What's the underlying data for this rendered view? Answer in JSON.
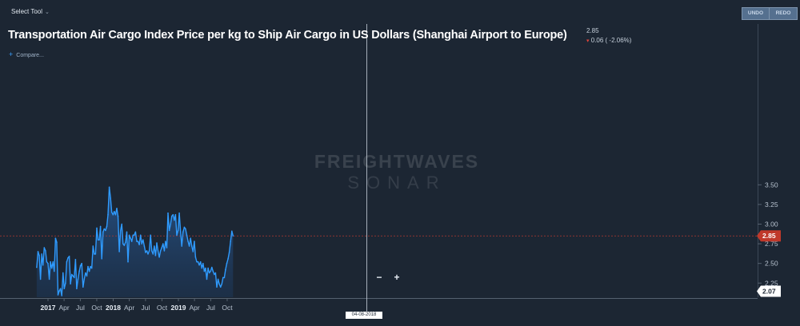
{
  "toolbar": {
    "select_tool_label": "Select Tool",
    "undo_label": "UNDO",
    "redo_label": "REDO"
  },
  "header": {
    "title": "Transportation Air Cargo Index Price per kg to Ship Air Cargo in US Dollars (Shanghai Airport to Europe)",
    "last_value": "2.85",
    "change": "0.06 ( -2.06%)",
    "compare_label": "Compare..."
  },
  "watermark": {
    "line1": "FREIGHTWAVES",
    "line2": "SONAR"
  },
  "zoom": {
    "minus": "−",
    "plus": "+"
  },
  "crosshair_date": "04-08-2018",
  "colors": {
    "line": "#2f9bff",
    "background": "#1c2633",
    "current_badge": "#c0392b",
    "crosshair": "#c9d2dc"
  },
  "chart_data": {
    "type": "area",
    "title": "Transportation Air Cargo Index Price per kg to Ship Air Cargo in US Dollars (Shanghai Airport to Europe)",
    "xlabel": "",
    "ylabel": "",
    "ylim": [
      2.07,
      3.72
    ],
    "yticks": [
      "2.25",
      "2.50",
      "2.75",
      "3.00",
      "3.25",
      "3.50"
    ],
    "xticks": [
      {
        "label": "2017",
        "date": "2017-01-01",
        "bold": true
      },
      {
        "label": "Apr",
        "date": "2017-04-01",
        "bold": false
      },
      {
        "label": "Jul",
        "date": "2017-07-01",
        "bold": false
      },
      {
        "label": "Oct",
        "date": "2017-10-01",
        "bold": false
      },
      {
        "label": "2018",
        "date": "2018-01-01",
        "bold": true
      },
      {
        "label": "Apr",
        "date": "2018-04-01",
        "bold": false
      },
      {
        "label": "Jul",
        "date": "2018-07-01",
        "bold": false
      },
      {
        "label": "Oct",
        "date": "2018-10-01",
        "bold": false
      },
      {
        "label": "2019",
        "date": "2019-01-01",
        "bold": true
      },
      {
        "label": "Apr",
        "date": "2019-04-01",
        "bold": false
      },
      {
        "label": "Jul",
        "date": "2019-07-01",
        "bold": false
      },
      {
        "label": "Oct",
        "date": "2019-10-01",
        "bold": false
      }
    ],
    "current_value": "2.85",
    "min_value": "2.07",
    "grid": false,
    "series": [
      {
        "points": [
          [
            "2016-10-30",
            2.45
          ],
          [
            "2016-11-06",
            2.65
          ],
          [
            "2016-11-13",
            2.6
          ],
          [
            "2016-11-20",
            2.3
          ],
          [
            "2016-11-27",
            2.62
          ],
          [
            "2016-12-04",
            2.48
          ],
          [
            "2016-12-11",
            2.7
          ],
          [
            "2016-12-18",
            2.66
          ],
          [
            "2016-12-25",
            2.52
          ],
          [
            "2017-01-01",
            2.5
          ],
          [
            "2017-01-08",
            2.3
          ],
          [
            "2017-01-15",
            2.52
          ],
          [
            "2017-01-22",
            2.44
          ],
          [
            "2017-01-29",
            2.52
          ],
          [
            "2017-02-05",
            2.4
          ],
          [
            "2017-02-12",
            2.82
          ],
          [
            "2017-02-19",
            2.77
          ],
          [
            "2017-02-26",
            2.1
          ],
          [
            "2017-03-05",
            2.15
          ],
          [
            "2017-03-12",
            2.18
          ],
          [
            "2017-03-19",
            2.09
          ],
          [
            "2017-03-26",
            2.38
          ],
          [
            "2017-04-02",
            2.18
          ],
          [
            "2017-04-09",
            2.25
          ],
          [
            "2017-04-16",
            2.52
          ],
          [
            "2017-04-23",
            2.57
          ],
          [
            "2017-04-30",
            2.59
          ],
          [
            "2017-05-07",
            2.24
          ],
          [
            "2017-05-14",
            2.36
          ],
          [
            "2017-05-21",
            2.34
          ],
          [
            "2017-05-28",
            2.32
          ],
          [
            "2017-06-04",
            2.55
          ],
          [
            "2017-06-11",
            2.18
          ],
          [
            "2017-06-18",
            2.3
          ],
          [
            "2017-06-25",
            2.4
          ],
          [
            "2017-07-02",
            2.47
          ],
          [
            "2017-07-09",
            2.5
          ],
          [
            "2017-07-16",
            2.2
          ],
          [
            "2017-07-23",
            2.3
          ],
          [
            "2017-07-30",
            2.38
          ],
          [
            "2017-08-06",
            2.34
          ],
          [
            "2017-08-13",
            2.46
          ],
          [
            "2017-08-20",
            2.4
          ],
          [
            "2017-08-27",
            2.46
          ],
          [
            "2017-09-03",
            2.44
          ],
          [
            "2017-09-10",
            2.72
          ],
          [
            "2017-09-17",
            2.62
          ],
          [
            "2017-09-24",
            2.62
          ],
          [
            "2017-10-01",
            2.95
          ],
          [
            "2017-10-08",
            2.8
          ],
          [
            "2017-10-15",
            2.8
          ],
          [
            "2017-10-22",
            2.97
          ],
          [
            "2017-10-29",
            2.56
          ],
          [
            "2017-11-05",
            2.9
          ],
          [
            "2017-11-12",
            2.94
          ],
          [
            "2017-11-19",
            2.92
          ],
          [
            "2017-11-26",
            2.97
          ],
          [
            "2017-12-03",
            3.12
          ],
          [
            "2017-12-10",
            3.47
          ],
          [
            "2017-12-17",
            3.33
          ],
          [
            "2017-12-24",
            3.15
          ],
          [
            "2017-12-31",
            3.12
          ],
          [
            "2018-01-07",
            3.16
          ],
          [
            "2018-01-14",
            3.12
          ],
          [
            "2018-01-21",
            3.2
          ],
          [
            "2018-01-28",
            3.1
          ],
          [
            "2018-02-04",
            2.65
          ],
          [
            "2018-02-11",
            2.92
          ],
          [
            "2018-02-18",
            3.0
          ],
          [
            "2018-02-25",
            2.75
          ],
          [
            "2018-03-04",
            2.73
          ],
          [
            "2018-03-11",
            2.77
          ],
          [
            "2018-03-18",
            2.9
          ],
          [
            "2018-03-25",
            2.52
          ],
          [
            "2018-04-01",
            2.86
          ],
          [
            "2018-04-08",
            2.82
          ],
          [
            "2018-04-15",
            2.78
          ],
          [
            "2018-04-22",
            2.86
          ],
          [
            "2018-04-29",
            2.86
          ],
          [
            "2018-05-06",
            2.9
          ],
          [
            "2018-05-13",
            2.78
          ],
          [
            "2018-05-20",
            2.78
          ],
          [
            "2018-05-27",
            2.74
          ],
          [
            "2018-06-03",
            2.86
          ],
          [
            "2018-06-10",
            2.75
          ],
          [
            "2018-06-17",
            2.8
          ],
          [
            "2018-06-24",
            2.72
          ],
          [
            "2018-07-01",
            2.64
          ],
          [
            "2018-07-08",
            2.66
          ],
          [
            "2018-07-15",
            2.62
          ],
          [
            "2018-07-22",
            2.66
          ],
          [
            "2018-07-29",
            2.86
          ],
          [
            "2018-08-05",
            2.66
          ],
          [
            "2018-08-12",
            2.62
          ],
          [
            "2018-08-19",
            2.72
          ],
          [
            "2018-08-26",
            2.6
          ],
          [
            "2018-09-02",
            2.76
          ],
          [
            "2018-09-09",
            2.66
          ],
          [
            "2018-09-16",
            2.58
          ],
          [
            "2018-09-23",
            2.66
          ],
          [
            "2018-09-30",
            2.7
          ],
          [
            "2018-10-07",
            2.75
          ],
          [
            "2018-10-14",
            2.66
          ],
          [
            "2018-10-21",
            2.78
          ],
          [
            "2018-10-28",
            2.7
          ],
          [
            "2018-11-04",
            3.14
          ],
          [
            "2018-11-11",
            2.92
          ],
          [
            "2018-11-18",
            3.0
          ],
          [
            "2018-11-25",
            3.1
          ],
          [
            "2018-12-02",
            3.12
          ],
          [
            "2018-12-09",
            3.05
          ],
          [
            "2018-12-16",
            3.12
          ],
          [
            "2018-12-23",
            2.86
          ],
          [
            "2018-12-30",
            2.92
          ],
          [
            "2019-01-06",
            3.14
          ],
          [
            "2019-01-13",
            2.9
          ],
          [
            "2019-01-20",
            2.72
          ],
          [
            "2019-01-27",
            2.9
          ],
          [
            "2019-02-03",
            2.96
          ],
          [
            "2019-02-10",
            2.94
          ],
          [
            "2019-02-17",
            2.86
          ],
          [
            "2019-02-24",
            2.78
          ],
          [
            "2019-03-03",
            2.72
          ],
          [
            "2019-03-10",
            2.82
          ],
          [
            "2019-03-17",
            2.72
          ],
          [
            "2019-03-24",
            2.65
          ],
          [
            "2019-03-31",
            2.78
          ],
          [
            "2019-04-07",
            2.58
          ],
          [
            "2019-04-14",
            2.52
          ],
          [
            "2019-04-21",
            2.52
          ],
          [
            "2019-04-28",
            2.48
          ],
          [
            "2019-05-05",
            2.52
          ],
          [
            "2019-05-12",
            2.44
          ],
          [
            "2019-05-19",
            2.5
          ],
          [
            "2019-05-26",
            2.4
          ],
          [
            "2019-06-02",
            2.44
          ],
          [
            "2019-06-09",
            2.3
          ],
          [
            "2019-06-16",
            2.44
          ],
          [
            "2019-06-23",
            2.38
          ],
          [
            "2019-06-30",
            2.4
          ],
          [
            "2019-07-07",
            2.45
          ],
          [
            "2019-07-14",
            2.4
          ],
          [
            "2019-07-21",
            2.36
          ],
          [
            "2019-07-28",
            2.38
          ],
          [
            "2019-08-04",
            2.2
          ],
          [
            "2019-08-11",
            2.3
          ],
          [
            "2019-08-18",
            2.24
          ],
          [
            "2019-08-25",
            2.2
          ],
          [
            "2019-09-01",
            2.24
          ],
          [
            "2019-09-08",
            2.32
          ],
          [
            "2019-09-15",
            2.32
          ],
          [
            "2019-09-22",
            2.42
          ],
          [
            "2019-09-29",
            2.5
          ],
          [
            "2019-10-06",
            2.56
          ],
          [
            "2019-10-13",
            2.64
          ],
          [
            "2019-10-20",
            2.78
          ],
          [
            "2019-10-27",
            2.91
          ],
          [
            "2019-11-03",
            2.85
          ]
        ]
      }
    ]
  }
}
